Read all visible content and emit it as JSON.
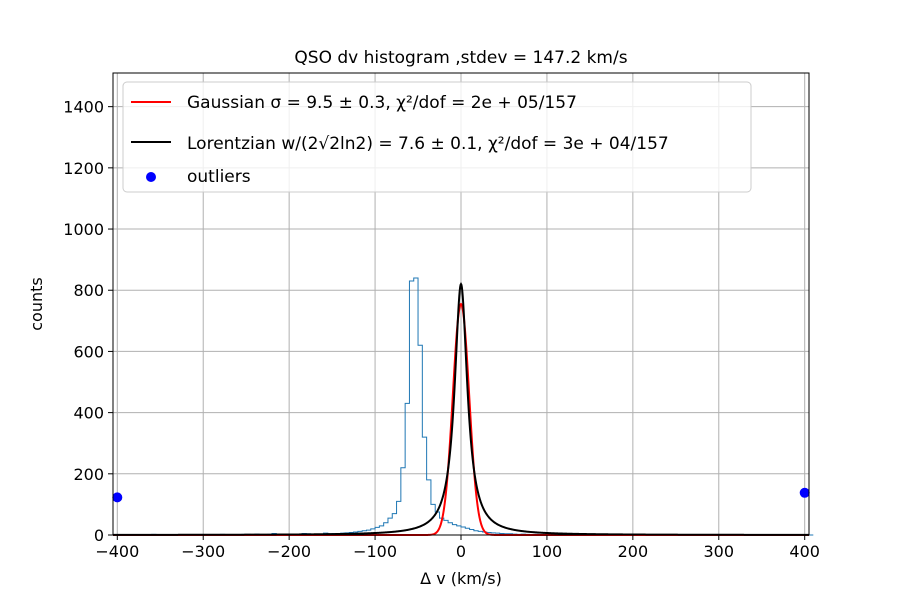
{
  "chart_data": {
    "type": "histogram",
    "title": "QSO dv histogram ,stdev = 147.2 km/s",
    "xlabel": "Δ v (km/s)",
    "ylabel": "counts",
    "xlim": [
      -405,
      405
    ],
    "ylim": [
      0,
      1510
    ],
    "xticks": [
      -400,
      -300,
      -200,
      -100,
      0,
      100,
      200,
      300,
      400
    ],
    "xtick_labels": [
      "−400",
      "−300",
      "−200",
      "−100",
      "0",
      "100",
      "200",
      "300",
      "400"
    ],
    "yticks": [
      0,
      200,
      400,
      600,
      800,
      1000,
      1200,
      1400
    ],
    "ytick_labels": [
      "0",
      "200",
      "400",
      "600",
      "800",
      "1000",
      "1200",
      "1400"
    ],
    "grid": true,
    "legend_position": "top-left",
    "histogram": {
      "name": "",
      "color": "#1f77b4",
      "bin_edges_start": -400,
      "bin_width": 5,
      "counts": [
        0,
        0,
        0,
        0,
        0,
        0,
        0,
        0,
        2,
        0,
        0,
        0,
        0,
        0,
        1,
        0,
        0,
        0,
        0,
        1,
        0,
        0,
        0,
        0,
        2,
        1,
        0,
        0,
        1,
        2,
        2,
        1,
        3,
        1,
        0,
        2,
        5,
        0,
        2,
        0,
        1,
        3,
        2,
        5,
        4,
        2,
        3,
        2,
        6,
        4,
        5,
        5,
        6,
        7,
        8,
        10,
        12,
        14,
        16,
        20,
        25,
        30,
        40,
        55,
        70,
        110,
        220,
        430,
        830,
        840,
        620,
        320,
        180,
        100,
        75,
        55,
        48,
        40,
        34,
        30,
        26,
        22,
        18,
        14,
        12,
        10,
        8,
        7,
        6,
        5,
        4,
        4,
        3,
        2,
        3,
        2,
        1,
        2,
        1,
        2,
        1,
        0,
        1,
        1,
        0,
        0,
        1,
        2,
        1,
        0,
        1,
        1,
        0,
        1,
        0,
        2,
        0,
        1,
        0,
        0,
        0,
        1,
        0,
        0,
        1,
        0,
        0,
        0,
        0,
        0,
        0,
        0,
        1,
        0,
        0,
        0,
        0,
        0,
        0,
        0,
        0,
        0,
        0,
        0,
        0,
        0,
        0,
        0,
        0,
        1,
        1,
        0,
        0,
        0,
        0,
        0,
        0,
        0,
        0,
        0,
        0,
        0
      ]
    },
    "series": [
      {
        "name": "Gaussian",
        "legend_label": "Gaussian σ = 9.5 ± 0.3, χ²/dof = 2e + 05/157",
        "color": "#ff0000",
        "model": "gaussian",
        "amplitude": 755,
        "center": 0,
        "sigma": 9.5
      },
      {
        "name": "Lorentzian",
        "legend_label": "Lorentzian w/(2√2ln2) = 7.6 ± 0.1, χ²/dof = 3e + 04/157",
        "color": "#000000",
        "model": "lorentzian",
        "amplitude": 820,
        "center": 0,
        "gamma": 8.95
      }
    ],
    "outliers": {
      "name": "outliers",
      "color": "#0000ff",
      "points": [
        {
          "x": -400,
          "y": 123
        },
        {
          "x": 400,
          "y": 138
        }
      ]
    }
  }
}
